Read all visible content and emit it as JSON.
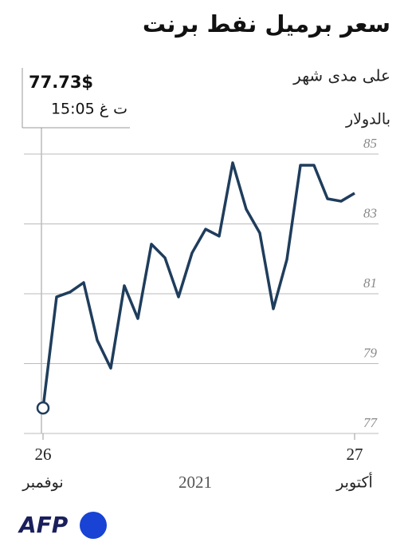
{
  "chart_data": {
    "type": "line",
    "title": "سعر برميل نفط برنت",
    "subtitle": "على مدى شهر",
    "unit_label": "بالدولار",
    "categories": [
      "26",
      null,
      null,
      null,
      null,
      null,
      null,
      null,
      null,
      null,
      null,
      null,
      null,
      null,
      null,
      null,
      null,
      null,
      null,
      null,
      null,
      null,
      null,
      "27"
    ],
    "category_months": [
      "نوفمبر",
      null,
      null,
      null,
      null,
      null,
      null,
      null,
      null,
      null,
      null,
      null,
      null,
      null,
      null,
      null,
      null,
      null,
      null,
      null,
      null,
      null,
      null,
      "أكتوبر"
    ],
    "year_label": "2021",
    "series": [
      {
        "name": "برنت",
        "color": "#1f3d5c",
        "values": [
          77.73,
          80.91,
          81.05,
          81.32,
          79.67,
          78.87,
          81.23,
          80.29,
          82.42,
          82.03,
          80.91,
          82.17,
          82.85,
          82.65,
          84.75,
          83.42,
          82.74,
          80.57,
          81.98,
          84.68,
          84.68,
          83.72,
          83.65,
          83.88
        ],
        "value_labels": [
          "77.73$",
          null,
          null,
          null,
          null,
          null,
          null,
          null,
          null,
          null,
          null,
          null,
          null,
          null,
          null,
          null,
          null,
          null,
          null,
          null,
          null,
          null,
          null,
          null
        ]
      }
    ],
    "last_time": "15:05 ت غ",
    "ylim": [
      77,
      85
    ],
    "yticks": [
      77,
      79,
      81,
      83,
      85
    ],
    "grid": true,
    "logo": "AFP"
  }
}
